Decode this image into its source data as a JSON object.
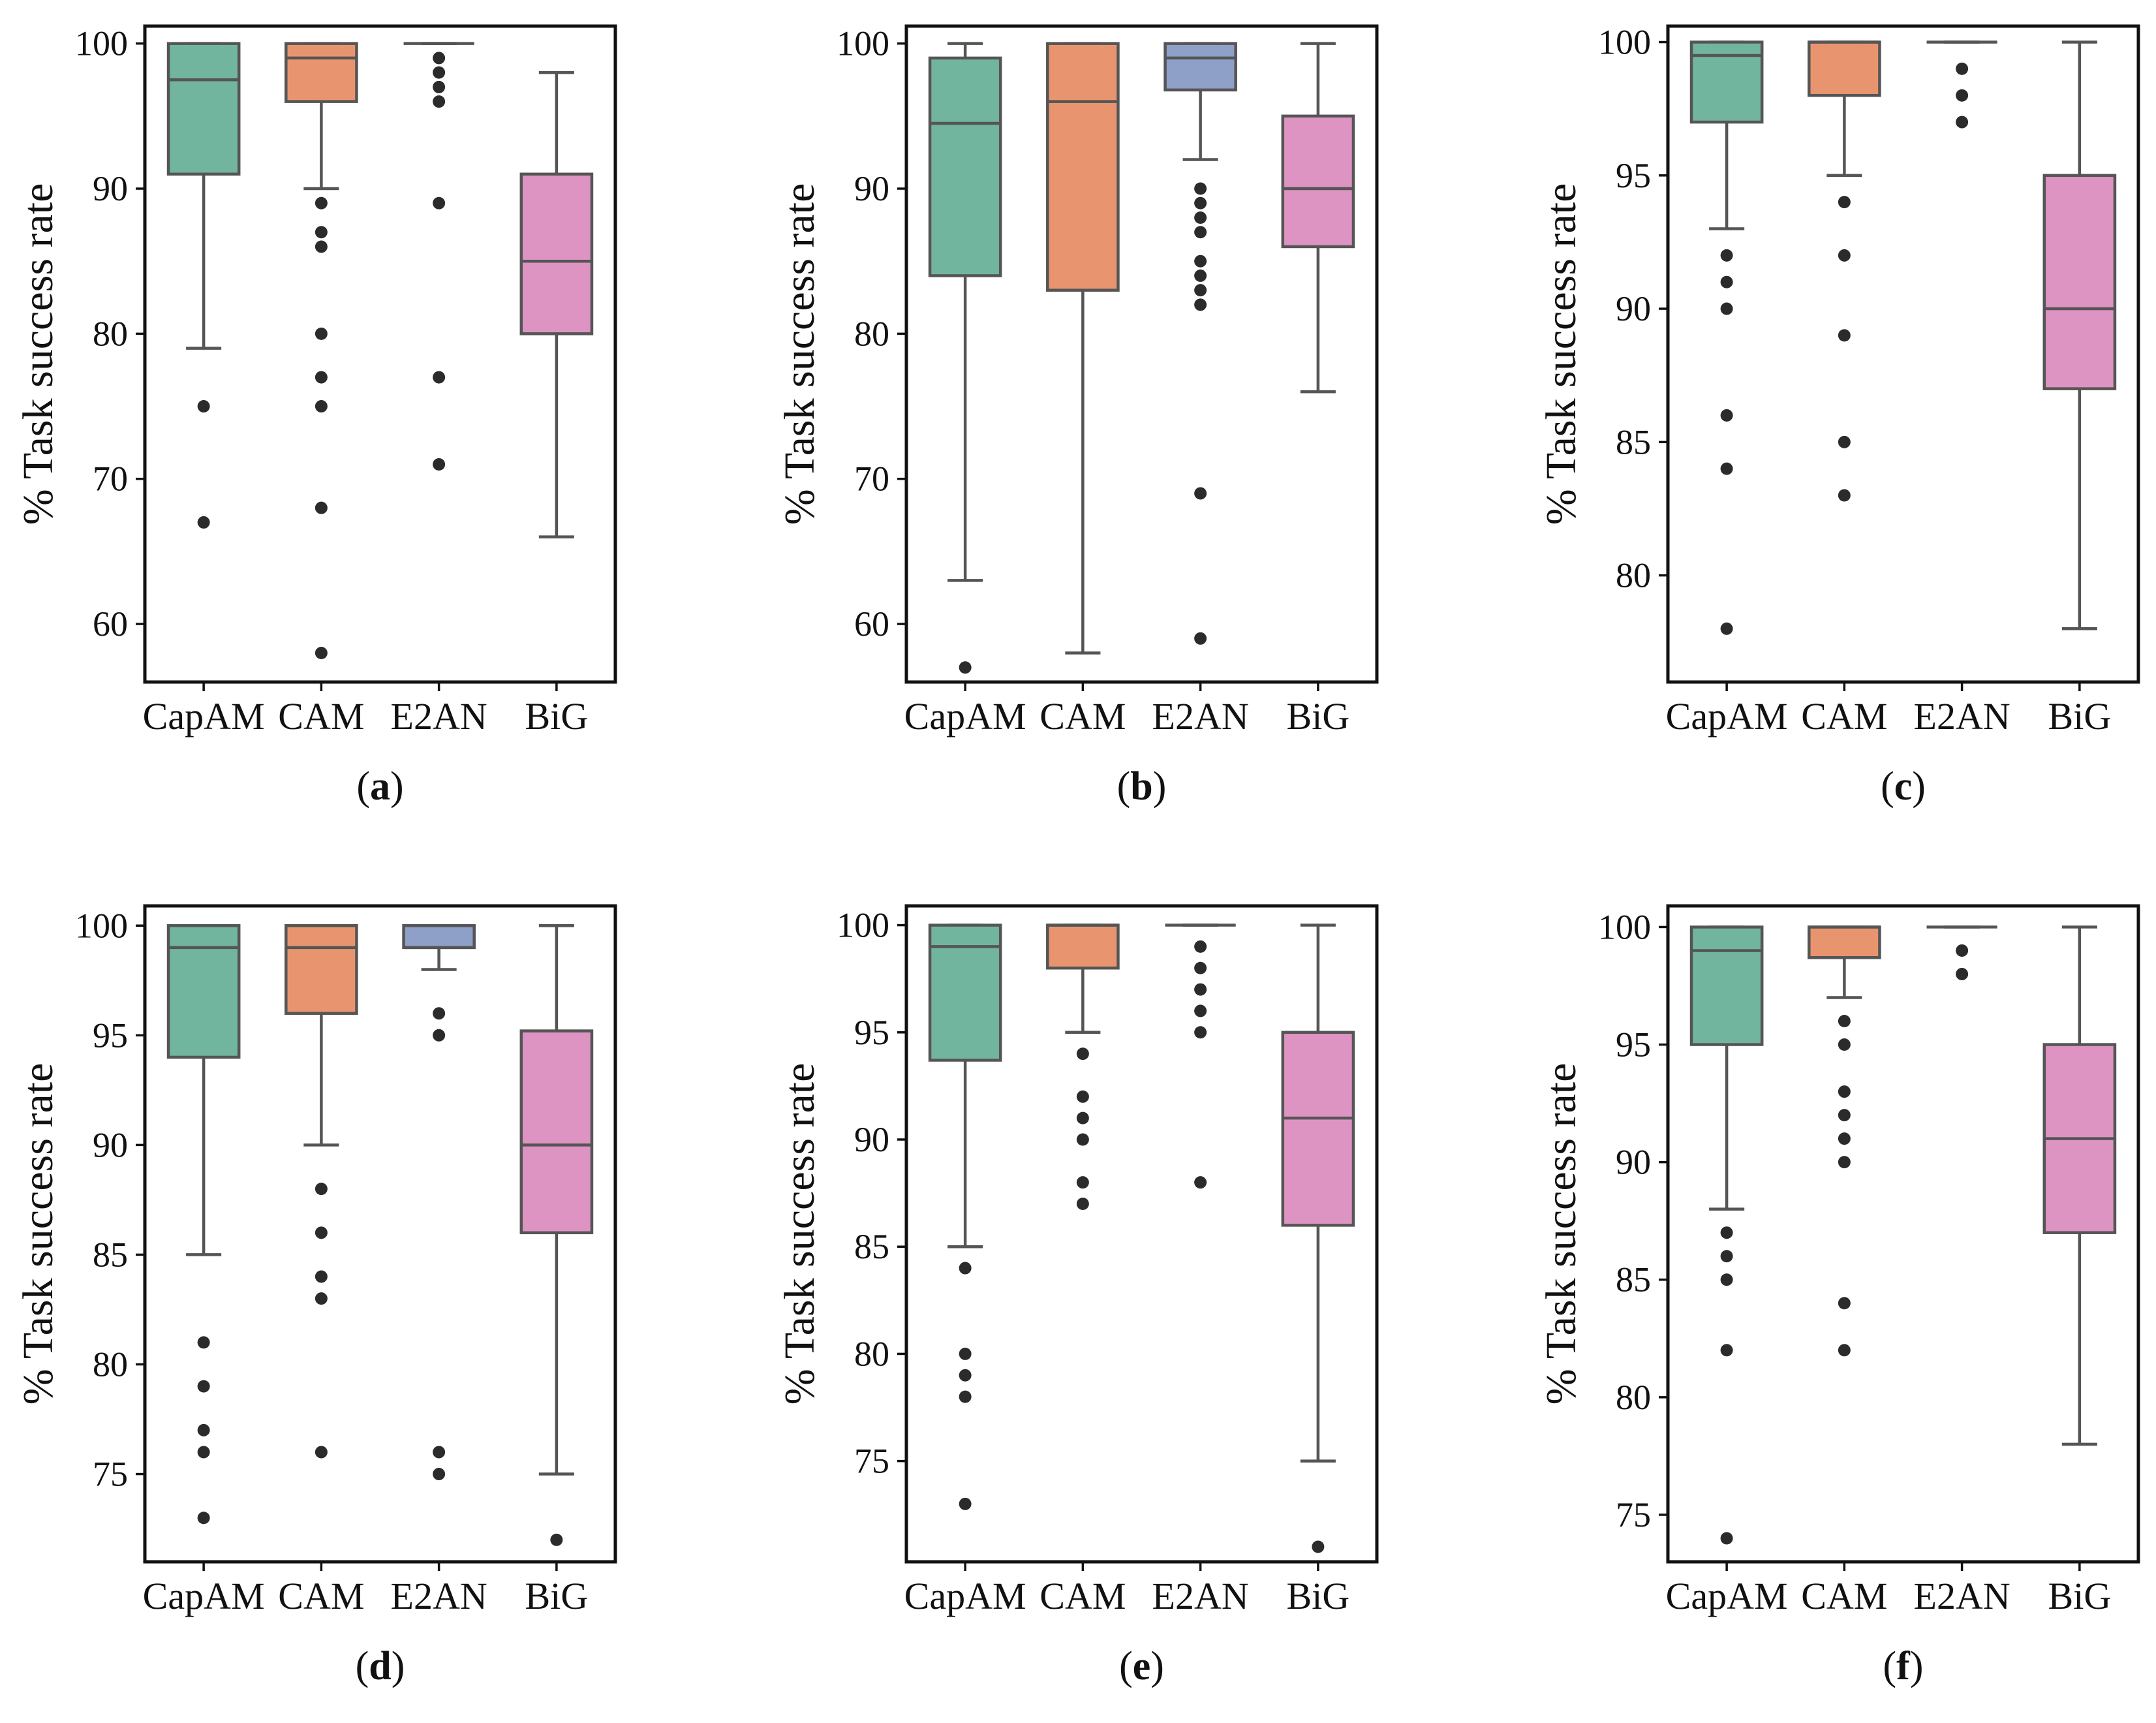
{
  "chart_data": [
    {
      "panel": "(a)",
      "type": "box",
      "ylabel": "% Task success rate",
      "ylim": [
        56,
        101.2
      ],
      "yticks": [
        60,
        70,
        80,
        90,
        100
      ],
      "categories": [
        "CapAM",
        "CAM",
        "E2AN",
        "BiG"
      ],
      "colors": [
        "#72b59f",
        "#e8956f",
        "#8e9fc8",
        "#dd94c2"
      ],
      "boxes": [
        {
          "whislo": 79,
          "q1": 91,
          "med": 97.5,
          "q3": 100,
          "whishi": 100,
          "fliers": [
            75,
            67
          ]
        },
        {
          "whislo": 90,
          "q1": 96,
          "med": 99,
          "q3": 100,
          "whishi": 100,
          "fliers": [
            89,
            87,
            86,
            80,
            77,
            75,
            68,
            58
          ]
        },
        {
          "whislo": 100,
          "q1": 100,
          "med": 100,
          "q3": 100,
          "whishi": 100,
          "fliers": [
            99,
            98,
            97,
            96,
            89,
            77,
            71
          ]
        },
        {
          "whislo": 66,
          "q1": 80,
          "med": 85,
          "q3": 91,
          "whishi": 98,
          "fliers": []
        }
      ]
    },
    {
      "panel": "(b)",
      "type": "box",
      "ylabel": "% Task success rate",
      "ylim": [
        56,
        101.2
      ],
      "yticks": [
        60,
        70,
        80,
        90,
        100
      ],
      "categories": [
        "CapAM",
        "CAM",
        "E2AN",
        "BiG"
      ],
      "colors": [
        "#72b59f",
        "#e8956f",
        "#8e9fc8",
        "#dd94c2"
      ],
      "boxes": [
        {
          "whislo": 63,
          "q1": 84,
          "med": 94.5,
          "q3": 99,
          "whishi": 100,
          "fliers": [
            57
          ]
        },
        {
          "whislo": 58,
          "q1": 83,
          "med": 96,
          "q3": 100,
          "whishi": 100,
          "fliers": []
        },
        {
          "whislo": 92,
          "q1": 96.8,
          "med": 99,
          "q3": 100,
          "whishi": 100,
          "fliers": [
            90,
            89,
            88,
            87,
            85,
            84,
            83,
            82,
            69,
            59
          ]
        },
        {
          "whislo": 76,
          "q1": 86,
          "med": 90,
          "q3": 95,
          "whishi": 100,
          "fliers": []
        }
      ]
    },
    {
      "panel": "(c)",
      "type": "box",
      "ylabel": "% Task success rate",
      "ylim": [
        76,
        100.6
      ],
      "yticks": [
        80,
        85,
        90,
        95,
        100
      ],
      "categories": [
        "CapAM",
        "CAM",
        "E2AN",
        "BiG"
      ],
      "colors": [
        "#72b59f",
        "#e8956f",
        "#8e9fc8",
        "#dd94c2"
      ],
      "boxes": [
        {
          "whislo": 93,
          "q1": 97,
          "med": 99.5,
          "q3": 100,
          "whishi": 100,
          "fliers": [
            92,
            91,
            90,
            86,
            84,
            78
          ]
        },
        {
          "whislo": 95,
          "q1": 98,
          "med": 100,
          "q3": 100,
          "whishi": 100,
          "fliers": [
            94,
            92,
            89,
            85,
            83
          ]
        },
        {
          "whislo": 100,
          "q1": 100,
          "med": 100,
          "q3": 100,
          "whishi": 100,
          "fliers": [
            99,
            98,
            97
          ]
        },
        {
          "whislo": 78,
          "q1": 87,
          "med": 90,
          "q3": 95,
          "whishi": 100,
          "fliers": []
        }
      ]
    },
    {
      "panel": "(d)",
      "type": "box",
      "ylabel": "% Task success rate",
      "ylim": [
        71,
        100.9
      ],
      "yticks": [
        75,
        80,
        85,
        90,
        95,
        100
      ],
      "categories": [
        "CapAM",
        "CAM",
        "E2AN",
        "BiG"
      ],
      "colors": [
        "#72b59f",
        "#e8956f",
        "#8e9fc8",
        "#dd94c2"
      ],
      "boxes": [
        {
          "whislo": 85,
          "q1": 94,
          "med": 99,
          "q3": 100,
          "whishi": 100,
          "fliers": [
            81,
            79,
            77,
            76,
            73
          ]
        },
        {
          "whislo": 90,
          "q1": 96,
          "med": 99,
          "q3": 100,
          "whishi": 100,
          "fliers": [
            88,
            86,
            84,
            83,
            76
          ]
        },
        {
          "whislo": 98,
          "q1": 99,
          "med": 99,
          "q3": 100,
          "whishi": 100,
          "fliers": [
            96,
            95,
            76,
            75
          ]
        },
        {
          "whislo": 75,
          "q1": 86,
          "med": 90,
          "q3": 95.2,
          "whishi": 100,
          "fliers": [
            72
          ]
        }
      ]
    },
    {
      "panel": "(e)",
      "type": "box",
      "ylabel": "% Task success rate",
      "ylim": [
        70.3,
        100.9
      ],
      "yticks": [
        75,
        80,
        85,
        90,
        95,
        100
      ],
      "categories": [
        "CapAM",
        "CAM",
        "E2AN",
        "BiG"
      ],
      "colors": [
        "#72b59f",
        "#e8956f",
        "#8e9fc8",
        "#dd94c2"
      ],
      "boxes": [
        {
          "whislo": 85,
          "q1": 93.7,
          "med": 99,
          "q3": 100,
          "whishi": 100,
          "fliers": [
            84,
            80,
            79,
            78,
            73
          ]
        },
        {
          "whislo": 95,
          "q1": 98,
          "med": 100,
          "q3": 100,
          "whishi": 100,
          "fliers": [
            94,
            92,
            91,
            90,
            88,
            87
          ]
        },
        {
          "whislo": 100,
          "q1": 100,
          "med": 100,
          "q3": 100,
          "whishi": 100,
          "fliers": [
            99,
            98,
            97,
            96,
            95,
            88
          ]
        },
        {
          "whislo": 75,
          "q1": 86,
          "med": 91,
          "q3": 95,
          "whishi": 100,
          "fliers": [
            71
          ]
        }
      ]
    },
    {
      "panel": "(f)",
      "type": "box",
      "ylabel": "% Task success rate",
      "ylim": [
        73,
        100.9
      ],
      "yticks": [
        75,
        80,
        85,
        90,
        95,
        100
      ],
      "categories": [
        "CapAM",
        "CAM",
        "E2AN",
        "BiG"
      ],
      "colors": [
        "#72b59f",
        "#e8956f",
        "#8e9fc8",
        "#dd94c2"
      ],
      "boxes": [
        {
          "whislo": 88,
          "q1": 95,
          "med": 99,
          "q3": 100,
          "whishi": 100,
          "fliers": [
            87,
            86,
            85,
            82,
            74
          ]
        },
        {
          "whislo": 97,
          "q1": 98.7,
          "med": 100,
          "q3": 100,
          "whishi": 100,
          "fliers": [
            96,
            95,
            93,
            92,
            91,
            90,
            84,
            82
          ]
        },
        {
          "whislo": 100,
          "q1": 100,
          "med": 100,
          "q3": 100,
          "whishi": 100,
          "fliers": [
            99,
            98
          ]
        },
        {
          "whislo": 78,
          "q1": 87,
          "med": 91,
          "q3": 95,
          "whishi": 100,
          "fliers": []
        }
      ]
    }
  ]
}
